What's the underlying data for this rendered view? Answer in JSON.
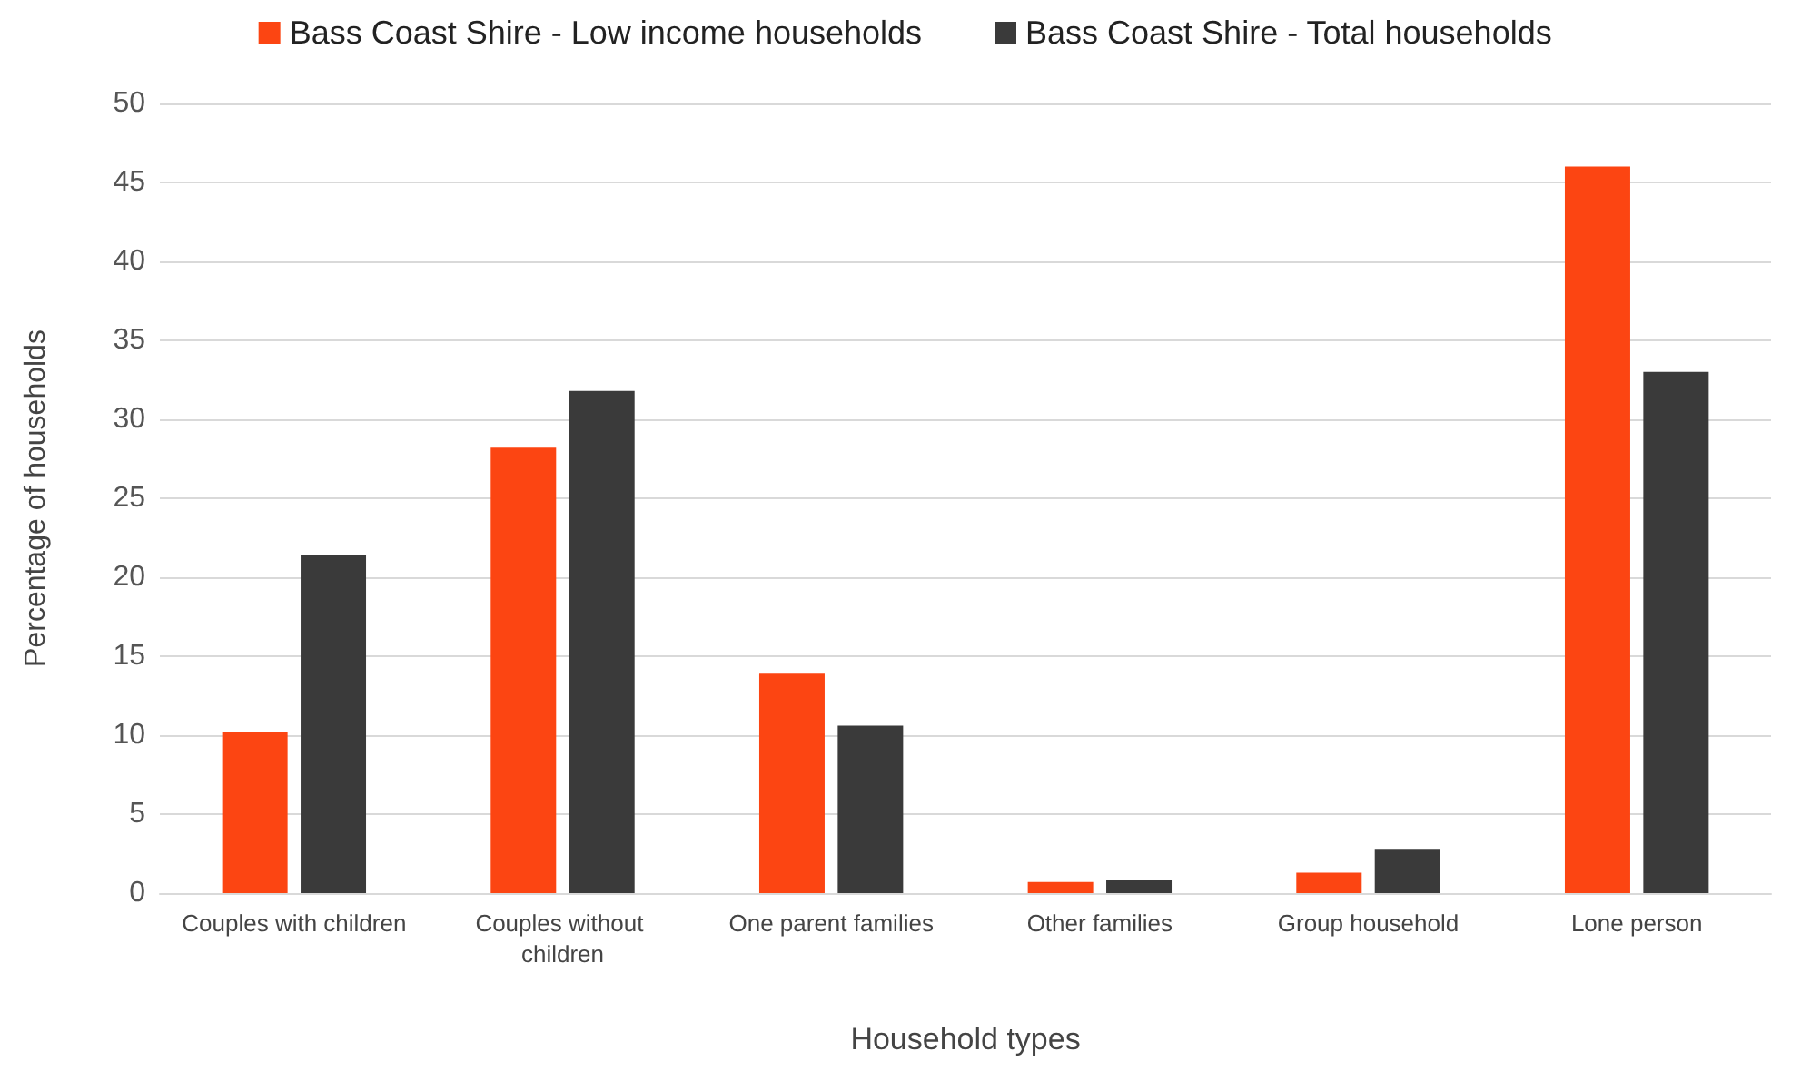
{
  "chart_data": {
    "type": "bar",
    "xlabel": "Household types",
    "ylabel": "Percentage of households",
    "categories": [
      "Couples with children",
      "Couples without children",
      "One parent families",
      "Other families",
      "Group household",
      "Lone person"
    ],
    "series": [
      {
        "name": "Bass Coast Shire - Low income households",
        "color": "#fc4512",
        "values": [
          10.2,
          28.2,
          13.9,
          0.7,
          1.3,
          46.0
        ]
      },
      {
        "name": "Bass Coast Shire - Total households",
        "color": "#3a3a3a",
        "values": [
          21.4,
          31.8,
          10.6,
          0.8,
          2.8,
          33.0
        ]
      }
    ],
    "ylim": [
      0,
      50
    ],
    "yticks": [
      0,
      5,
      10,
      15,
      20,
      25,
      30,
      35,
      40,
      45,
      50
    ],
    "grid": "y",
    "legend": "top"
  }
}
